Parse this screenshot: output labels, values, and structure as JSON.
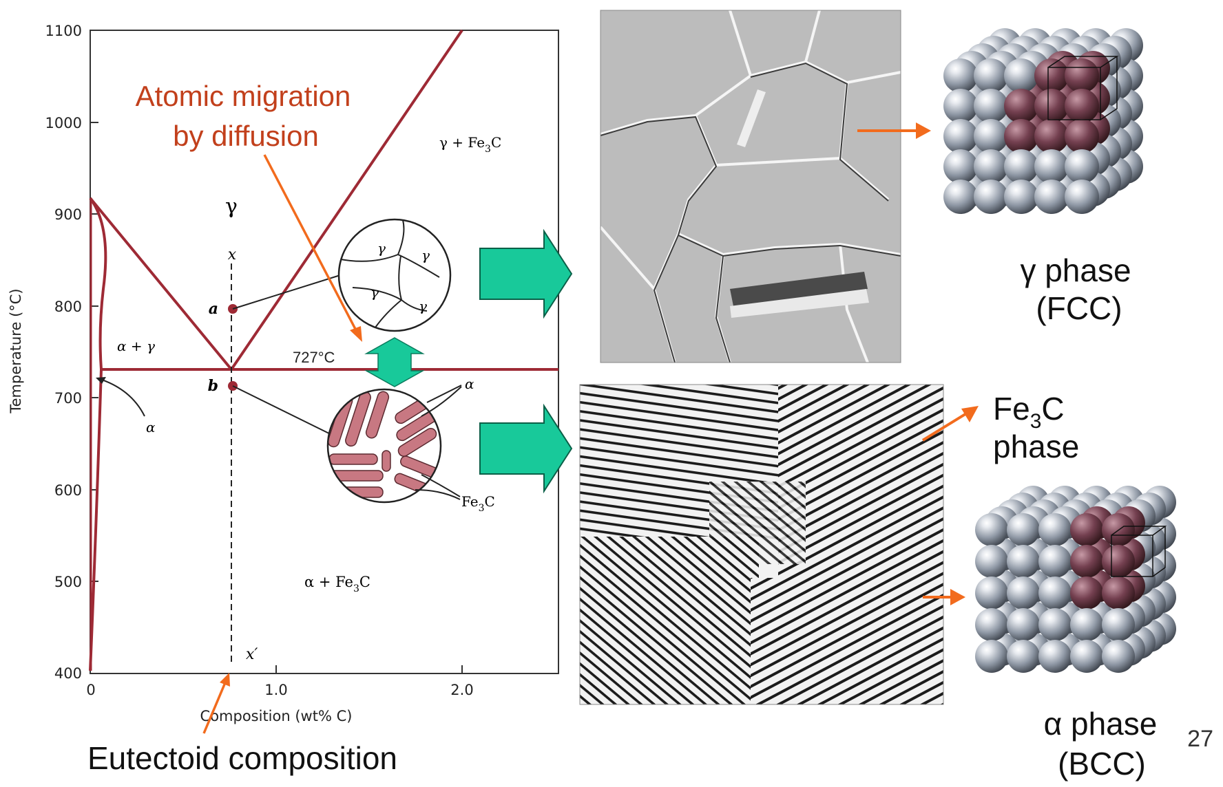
{
  "diagram": {
    "y_axis_title": "Temperature (°C)",
    "x_axis_title": "Composition (wt% C)",
    "y_ticks": [
      "1100",
      "1000",
      "900",
      "800",
      "700",
      "600",
      "500",
      "400"
    ],
    "x_ticks": [
      "0",
      "1.0",
      "2.0"
    ],
    "region_labels": {
      "gamma": "γ",
      "gamma_fe3c": "γ + Fe",
      "alpha_gamma": "α + γ",
      "alpha_fe3c": "α + Fe",
      "alpha": "α"
    },
    "temperature_label": "727°C",
    "points": {
      "a": "a",
      "b": "b",
      "x": "x",
      "x_prime": "x′"
    },
    "inset_top_grains": [
      "γ",
      "γ",
      "γ",
      "γ"
    ],
    "inset_bottom": {
      "alpha_label": "α",
      "fe3c_label": "Fe"
    },
    "subscript_3": "3",
    "carbide_c": "C"
  },
  "annotations": {
    "diffusion_line1": "Atomic migration",
    "diffusion_line2": "by diffusion",
    "eutectoid": "Eutectoid composition"
  },
  "phases": {
    "gamma_line1": "γ phase",
    "gamma_line2": "(FCC)",
    "fe3c_fe": "Fe",
    "fe3c_sub": "3",
    "fe3c_c": "C",
    "fe3c_line2": "phase",
    "alpha_line1": "α phase",
    "alpha_line2": "(BCC)"
  },
  "page_number": "27",
  "colors": {
    "phase_line": "#9e2a35",
    "arrow_orange": "#f26b1d",
    "block_arrow": "#18c99a",
    "annotation_red": "#c2401c",
    "atom_gray": "#9aa3ae",
    "atom_dark": "#6a3a48"
  }
}
